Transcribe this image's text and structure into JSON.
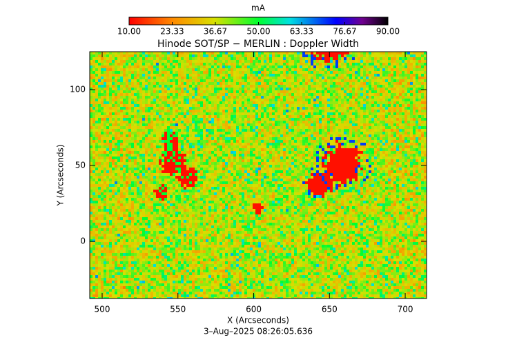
{
  "chart_data": {
    "type": "image",
    "title": "Hinode SOT/SP − MERLIN : Doppler Width",
    "x_label": "X (Arcseconds)",
    "y_label": "Y (Arcseconds)",
    "timestamp": "3–Aug–2025 08:26:05.636",
    "colorbar": {
      "label": "mA",
      "lim": [
        10,
        90
      ],
      "ticks": [
        {
          "value": 10,
          "label": "10.00"
        },
        {
          "value": 23.33,
          "label": "23.33"
        },
        {
          "value": 36.67,
          "label": "36.67"
        },
        {
          "value": 50,
          "label": "50.00"
        },
        {
          "value": 63.33,
          "label": "63.33"
        },
        {
          "value": 76.67,
          "label": "76.67"
        },
        {
          "value": 90,
          "label": "90.00"
        }
      ]
    },
    "xlim": [
      491.8,
      714.1
    ],
    "xticks": [
      500,
      550,
      600,
      650,
      700
    ],
    "ylim": [
      -37.7,
      125
    ],
    "yticks": [
      0,
      50,
      100
    ]
  }
}
